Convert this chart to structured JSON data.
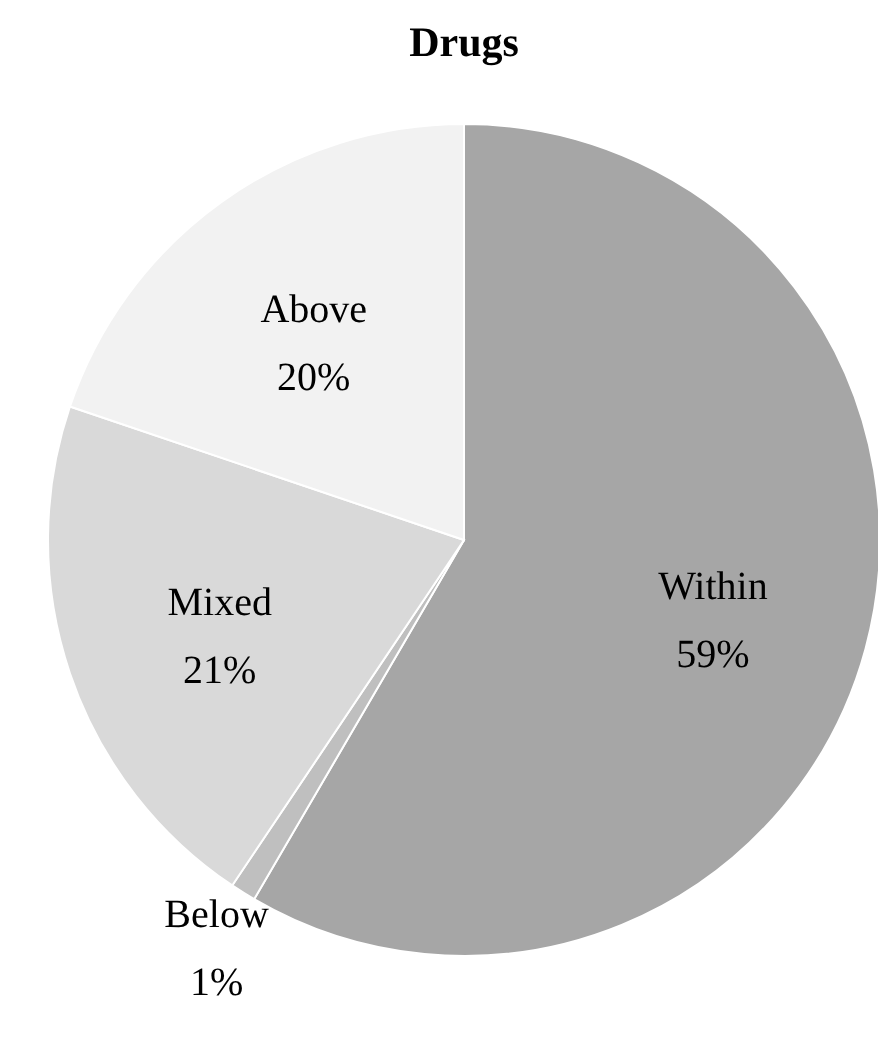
{
  "chart_data": {
    "type": "pie",
    "title": "Drugs",
    "categories": [
      "Within",
      "Below",
      "Mixed",
      "Above"
    ],
    "values": [
      59,
      1,
      21,
      20
    ],
    "colors": [
      "#a6a6a6",
      "#bfbfbf",
      "#d9d9d9",
      "#f2f2f2"
    ],
    "value_labels": [
      "59%",
      "1%",
      "21%",
      "20%"
    ]
  }
}
